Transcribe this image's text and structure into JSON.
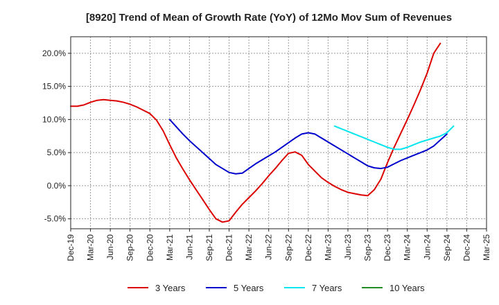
{
  "chart_data": {
    "type": "line",
    "title": "[8920]  Trend of Mean of Growth Rate (YoY) of 12Mo Mov Sum of Revenues",
    "xlabel": "",
    "ylabel": "",
    "ylim": [
      -6.5,
      22.5
    ],
    "y_ticks": [
      -5,
      0,
      5,
      10,
      15,
      20
    ],
    "y_tick_labels": [
      "-5.0%",
      "0.0%",
      "5.0%",
      "10.0%",
      "15.0%",
      "20.0%"
    ],
    "x_tick_labels": [
      "Dec-19",
      "Mar-20",
      "Jun-20",
      "Sep-20",
      "Dec-20",
      "Mar-21",
      "Jun-21",
      "Sep-21",
      "Dec-21",
      "Mar-22",
      "Jun-22",
      "Sep-22",
      "Dec-22",
      "Mar-23",
      "Jun-23",
      "Sep-23",
      "Dec-23",
      "Mar-24",
      "Jun-24",
      "Sep-24",
      "Dec-24",
      "Mar-25"
    ],
    "x_range_months": [
      0,
      63
    ],
    "grid": true,
    "legend_position": "bottom",
    "series": [
      {
        "name": "3 Years",
        "color": "#dd0000",
        "start_month": 0,
        "values": [
          12.0,
          12.0,
          12.2,
          12.6,
          12.9,
          13.0,
          12.9,
          12.8,
          12.6,
          12.3,
          11.9,
          11.4,
          10.9,
          9.9,
          8.3,
          6.2,
          4.2,
          2.5,
          0.9,
          -0.6,
          -2.1,
          -3.6,
          -5.0,
          -5.5,
          -5.3,
          -4.0,
          -2.8,
          -1.8,
          -0.8,
          0.3,
          1.5,
          2.6,
          3.8,
          4.9,
          5.1,
          4.6,
          3.2,
          2.2,
          1.2,
          0.5,
          -0.1,
          -0.6,
          -1.0,
          -1.2,
          -1.4,
          -1.5,
          -0.6,
          1.0,
          3.5,
          5.8,
          7.9,
          10.0,
          12.2,
          14.5,
          17.0,
          20.0,
          21.5
        ]
      },
      {
        "name": "5 Years",
        "color": "#0000cc",
        "start_month": 15,
        "values": [
          10.0,
          8.9,
          7.8,
          6.8,
          5.9,
          5.0,
          4.1,
          3.2,
          2.6,
          2.0,
          1.8,
          1.9,
          2.6,
          3.3,
          3.9,
          4.5,
          5.1,
          5.8,
          6.5,
          7.2,
          7.8,
          8.0,
          7.8,
          7.2,
          6.6,
          6.0,
          5.4,
          4.8,
          4.2,
          3.6,
          3.0,
          2.7,
          2.6,
          2.8,
          3.3,
          3.8,
          4.2,
          4.6,
          5.0,
          5.4,
          6.0,
          6.9,
          7.8
        ]
      },
      {
        "name": "7 Years",
        "color": "#00e5ee",
        "start_month": 40,
        "values": [
          9.0,
          8.6,
          8.2,
          7.8,
          7.4,
          7.0,
          6.6,
          6.2,
          5.8,
          5.5,
          5.5,
          5.8,
          6.2,
          6.6,
          6.9,
          7.2,
          7.5,
          8.0,
          9.0
        ]
      },
      {
        "name": "10 Years",
        "color": "#228B22",
        "start_month": 0,
        "values": []
      }
    ]
  }
}
